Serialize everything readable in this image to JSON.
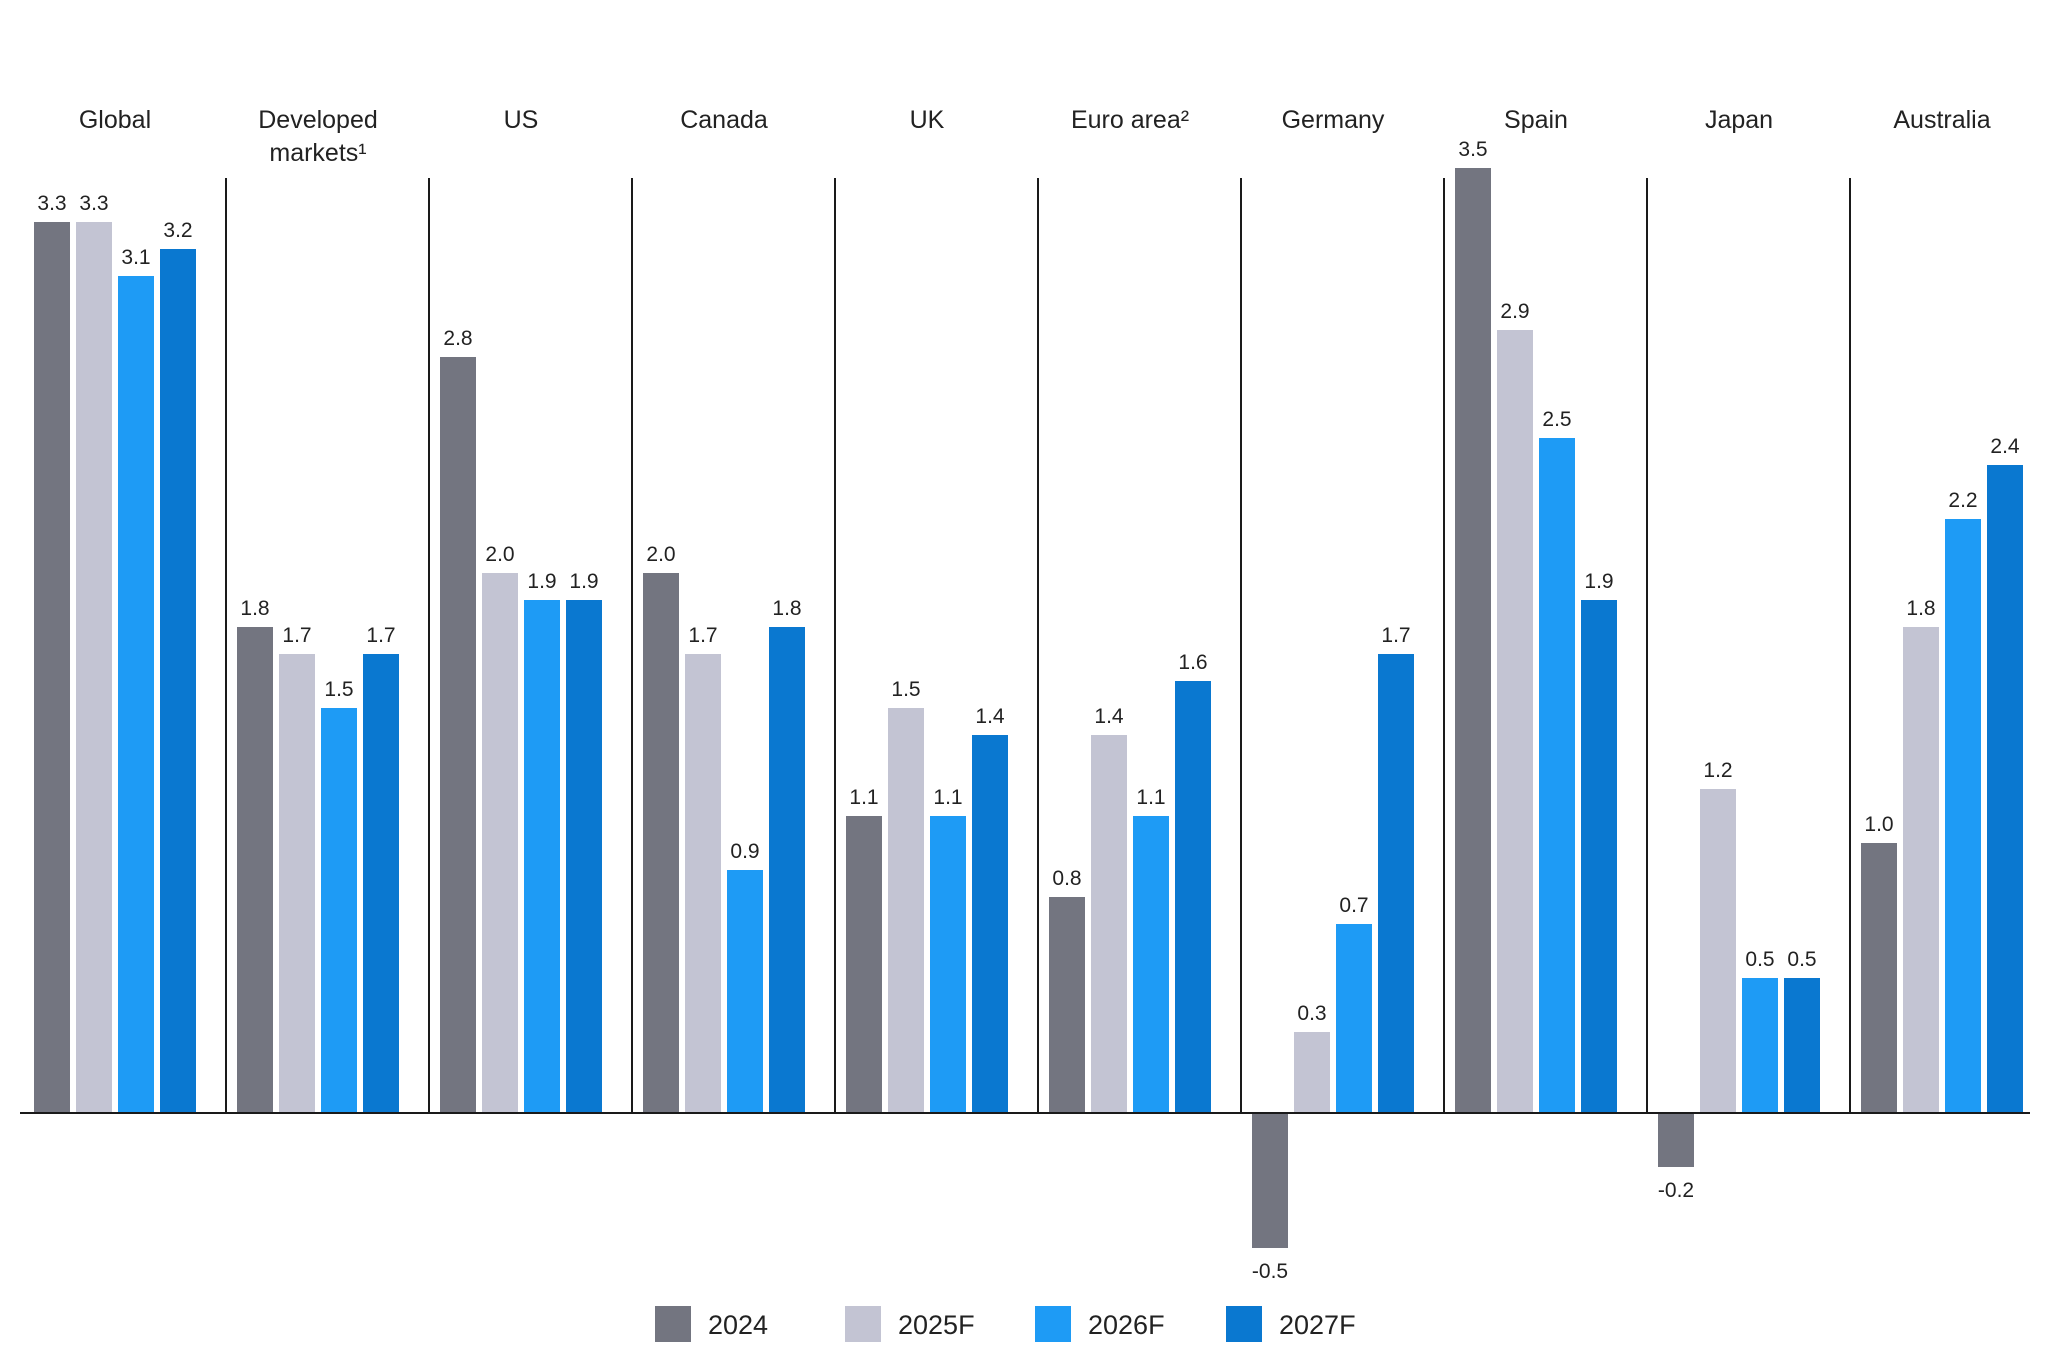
{
  "chart_data": {
    "type": "bar",
    "title": "",
    "xlabel": "",
    "ylabel": "",
    "ylim": [
      -0.7,
      3.6
    ],
    "categories": [
      [
        "Global"
      ],
      [
        "Developed",
        "markets¹"
      ],
      [
        "US"
      ],
      [
        "Canada"
      ],
      [
        "UK"
      ],
      [
        "Euro area²"
      ],
      [
        "Germany"
      ],
      [
        "Spain"
      ],
      [
        "Japan"
      ],
      [
        "Australia"
      ]
    ],
    "series": [
      {
        "name": "2024",
        "color": "#737580",
        "values": [
          3.3,
          1.8,
          2.8,
          2.0,
          1.1,
          0.8,
          -0.5,
          3.5,
          -0.2,
          1.0
        ],
        "labels": [
          "3.3",
          "1.8",
          "2.8",
          "2.0",
          "1.1",
          "0.8",
          "-0.5",
          "3.5",
          "-0.2",
          "1.0"
        ]
      },
      {
        "name": "2025F",
        "color": "#c3c4d3",
        "values": [
          3.3,
          1.7,
          2.0,
          1.7,
          1.5,
          1.4,
          0.3,
          2.9,
          1.2,
          1.8
        ],
        "labels": [
          "3.3",
          "1.7",
          "2.0",
          "1.7",
          "1.5",
          "1.4",
          "0.3",
          "2.9",
          "1.2",
          "1.8"
        ]
      },
      {
        "name": "2026F",
        "color": "#1e9bf5",
        "values": [
          3.1,
          1.5,
          1.9,
          0.9,
          1.1,
          1.1,
          0.7,
          2.5,
          0.5,
          2.2
        ],
        "labels": [
          "3.1",
          "1.5",
          "1.9",
          "0.9",
          "1.1",
          "1.1",
          "0.7",
          "2.5",
          "0.5",
          "2.2"
        ]
      },
      {
        "name": "2027F",
        "color": "#0a78d0",
        "values": [
          3.2,
          1.7,
          1.9,
          1.8,
          1.4,
          1.6,
          1.7,
          1.9,
          0.5,
          2.4
        ],
        "labels": [
          "3.2",
          "1.7",
          "1.9",
          "1.8",
          "1.4",
          "1.6",
          "1.7",
          "1.9",
          "0.5",
          "2.4"
        ]
      }
    ],
    "legend": "bottom-center",
    "grid": false
  }
}
